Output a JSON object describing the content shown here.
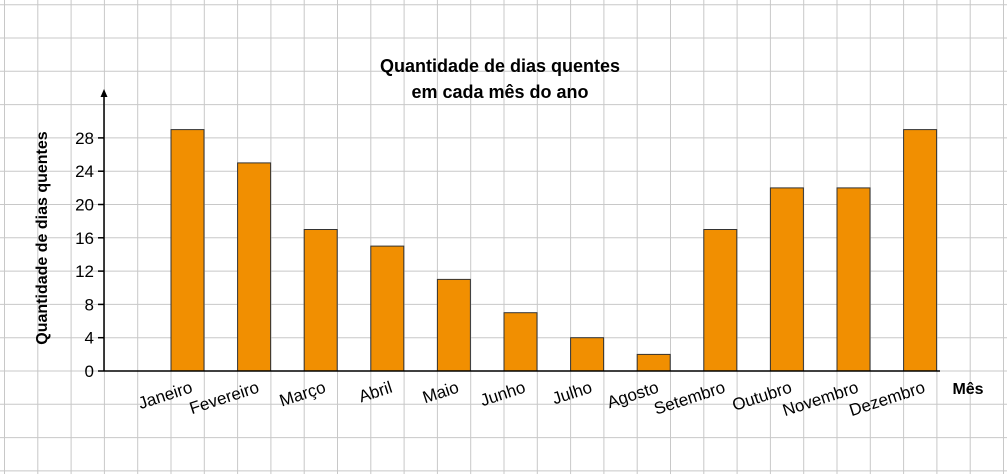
{
  "chart_data": {
    "type": "bar",
    "title": [
      "Quantidade de dias quentes",
      "em cada mês do ano"
    ],
    "xlabel": "Mês",
    "ylabel": "Quantidade de dias quentes",
    "categories": [
      "Janeiro",
      "Fevereiro",
      "Março",
      "Abril",
      "Maio",
      "Junho",
      "Julho",
      "Agosto",
      "Setembro",
      "Outubro",
      "Novembro",
      "Dezembro"
    ],
    "values": [
      29,
      25,
      17,
      15,
      11,
      7,
      4,
      2,
      17,
      22,
      22,
      29
    ],
    "yticks": [
      0,
      4,
      8,
      12,
      16,
      20,
      24,
      28
    ],
    "ylim": [
      0,
      32
    ],
    "grid": true,
    "colors": {
      "bar": "#f18f01",
      "bar_stroke": "#333333",
      "grid": "#c8c8c8"
    }
  }
}
